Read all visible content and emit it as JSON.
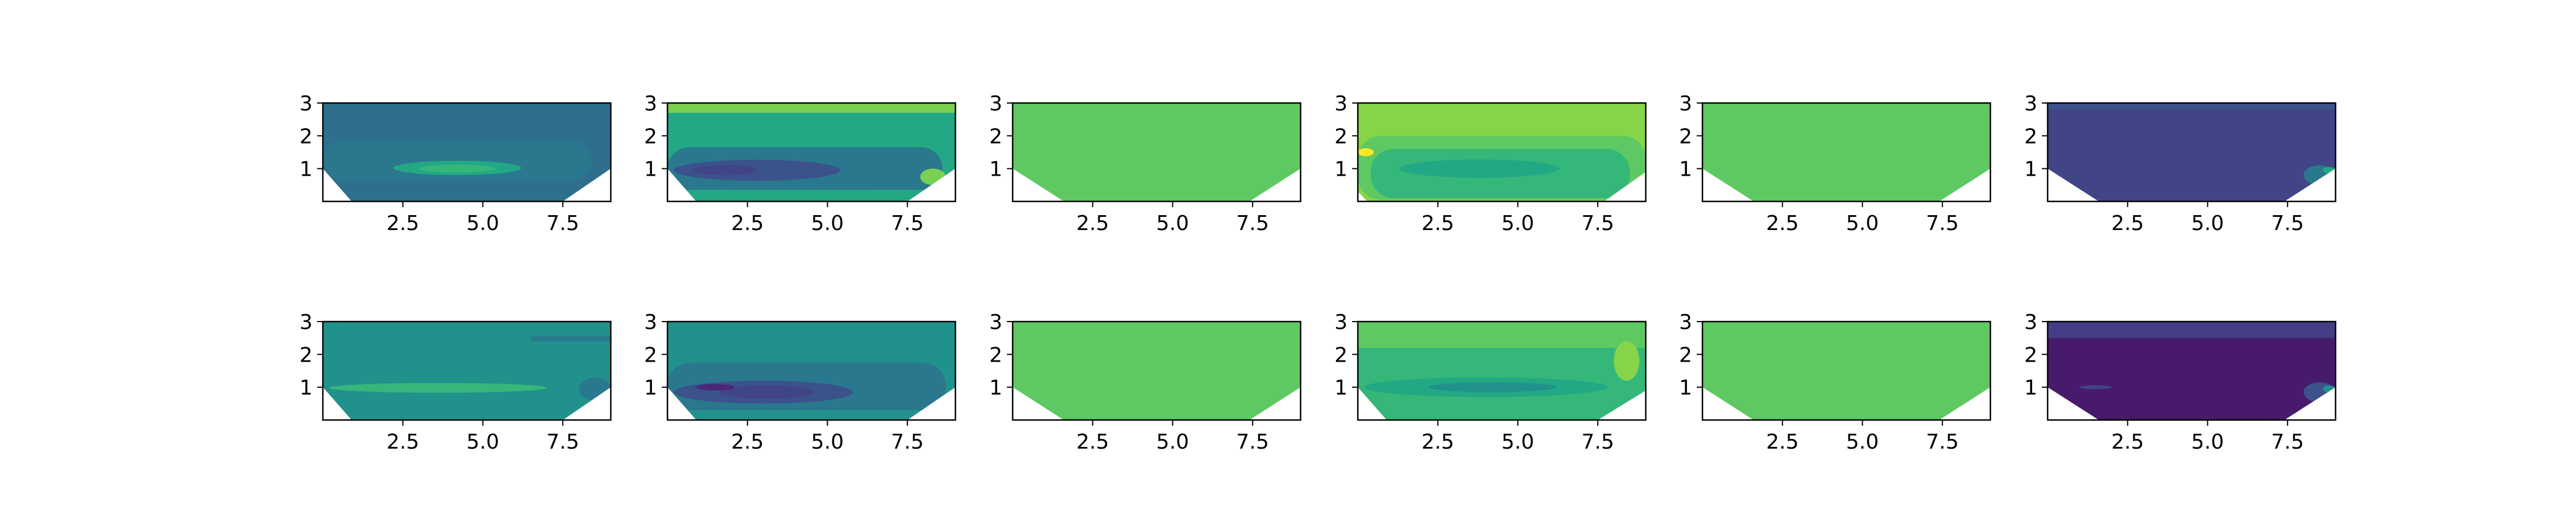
{
  "figure": {
    "layout": {
      "rows": 2,
      "cols": 6
    },
    "background": "#ffffff",
    "palette": "viridis"
  },
  "chart_data": [
    {
      "type": "contour",
      "row": 0,
      "col": 0,
      "xlim": [
        0,
        9
      ],
      "ylim": [
        0,
        3
      ],
      "xticks": [
        {
          "value": 2.5,
          "label": "2.5"
        },
        {
          "value": 5.0,
          "label": "5.0"
        },
        {
          "value": 7.5,
          "label": "7.5"
        }
      ],
      "yticks": [
        {
          "value": 1,
          "label": "1"
        },
        {
          "value": 2,
          "label": "2"
        },
        {
          "value": 3,
          "label": "3"
        }
      ],
      "blank_triangles": {
        "left_top": 1.0,
        "left_bottom_x": 0.9,
        "right_top": 1.0,
        "right_bottom_x": 7.5
      },
      "base_color": "#2e6f8e",
      "regions": [
        {
          "color": "#2a788e",
          "shape": "band",
          "top": 1.85,
          "bottom": 0.65,
          "x0": 0.0,
          "x1": 8.4
        },
        {
          "color": "#22a884",
          "shape": "blob",
          "cx": 4.2,
          "cy": 1.02,
          "rx": 2.0,
          "ry": 0.22
        },
        {
          "color": "#35b779",
          "shape": "blob",
          "cx": 4.2,
          "cy": 1.0,
          "rx": 1.2,
          "ry": 0.12
        }
      ]
    },
    {
      "type": "contour",
      "row": 0,
      "col": 1,
      "xlim": [
        0,
        9
      ],
      "ylim": [
        0,
        3
      ],
      "xticks": [
        {
          "value": 2.5,
          "label": "2.5"
        },
        {
          "value": 5.0,
          "label": "5.0"
        },
        {
          "value": 7.5,
          "label": "7.5"
        }
      ],
      "yticks": [
        {
          "value": 1,
          "label": "1"
        },
        {
          "value": 2,
          "label": "2"
        },
        {
          "value": 3,
          "label": "3"
        }
      ],
      "blank_triangles": {
        "left_top": 1.0,
        "left_bottom_x": 0.9,
        "right_top": 1.0,
        "right_bottom_x": 7.5
      },
      "base_color": "#22a884",
      "regions": [
        {
          "color": "#7ad151",
          "shape": "strip",
          "top": 3.0,
          "bottom": 2.7,
          "x0": 0.0,
          "x1": 9.0
        },
        {
          "color": "#2a788e",
          "shape": "band",
          "top": 1.65,
          "bottom": 0.35,
          "x0": 0.0,
          "x1": 8.6
        },
        {
          "color": "#3b528b",
          "shape": "blob",
          "cx": 2.8,
          "cy": 0.95,
          "rx": 2.6,
          "ry": 0.32
        },
        {
          "color": "#414487",
          "shape": "blob",
          "cx": 1.8,
          "cy": 0.95,
          "rx": 1.0,
          "ry": 0.15
        },
        {
          "color": "#7ad151",
          "shape": "blob",
          "cx": 8.3,
          "cy": 0.75,
          "rx": 0.4,
          "ry": 0.25
        }
      ]
    },
    {
      "type": "contour",
      "row": 0,
      "col": 2,
      "xlim": [
        0,
        9
      ],
      "ylim": [
        0,
        3
      ],
      "xticks": [
        {
          "value": 2.5,
          "label": "2.5"
        },
        {
          "value": 5.0,
          "label": "5.0"
        },
        {
          "value": 7.5,
          "label": "7.5"
        }
      ],
      "yticks": [
        {
          "value": 1,
          "label": "1"
        },
        {
          "value": 2,
          "label": "2"
        },
        {
          "value": 3,
          "label": "3"
        }
      ],
      "blank_triangles": {
        "left_top": 1.0,
        "left_bottom_x": 1.6,
        "right_top": 1.0,
        "right_bottom_x": 7.4
      },
      "base_color": "#5ec962",
      "regions": []
    },
    {
      "type": "contour",
      "row": 0,
      "col": 3,
      "xlim": [
        0,
        9
      ],
      "ylim": [
        0,
        3
      ],
      "xticks": [
        {
          "value": 2.5,
          "label": "2.5"
        },
        {
          "value": 5.0,
          "label": "5.0"
        },
        {
          "value": 7.5,
          "label": "7.5"
        }
      ],
      "yticks": [
        {
          "value": 1,
          "label": "1"
        },
        {
          "value": 2,
          "label": "2"
        },
        {
          "value": 3,
          "label": "3"
        }
      ],
      "blank_triangles": {
        "left_top": 0.3,
        "left_bottom_x": 0.3,
        "right_top": 0.9,
        "right_bottom_x": 7.7
      },
      "base_color": "#86d549",
      "regions": [
        {
          "color": "#5ec962",
          "shape": "band",
          "top": 2.0,
          "bottom": 0.05,
          "x0": 0.0,
          "x1": 9.0
        },
        {
          "color": "#35b779",
          "shape": "band",
          "top": 1.6,
          "bottom": 0.1,
          "x0": 0.4,
          "x1": 8.5
        },
        {
          "color": "#22a884",
          "shape": "blob",
          "cx": 3.8,
          "cy": 1.0,
          "rx": 2.5,
          "ry": 0.28
        },
        {
          "color": "#fde725",
          "shape": "blob",
          "cx": 0.25,
          "cy": 1.5,
          "rx": 0.25,
          "ry": 0.12
        }
      ]
    },
    {
      "type": "contour",
      "row": 0,
      "col": 4,
      "xlim": [
        0,
        9
      ],
      "ylim": [
        0,
        3
      ],
      "xticks": [
        {
          "value": 2.5,
          "label": "2.5"
        },
        {
          "value": 5.0,
          "label": "5.0"
        },
        {
          "value": 7.5,
          "label": "7.5"
        }
      ],
      "yticks": [
        {
          "value": 1,
          "label": "1"
        },
        {
          "value": 2,
          "label": "2"
        },
        {
          "value": 3,
          "label": "3"
        }
      ],
      "blank_triangles": {
        "left_top": 1.0,
        "left_bottom_x": 1.6,
        "right_top": 1.0,
        "right_bottom_x": 7.4
      },
      "base_color": "#5ec962",
      "regions": []
    },
    {
      "type": "contour",
      "row": 0,
      "col": 5,
      "xlim": [
        0,
        9
      ],
      "ylim": [
        0,
        3
      ],
      "xticks": [
        {
          "value": 2.5,
          "label": "2.5"
        },
        {
          "value": 5.0,
          "label": "5.0"
        },
        {
          "value": 7.5,
          "label": "7.5"
        }
      ],
      "yticks": [
        {
          "value": 1,
          "label": "1"
        },
        {
          "value": 2,
          "label": "2"
        },
        {
          "value": 3,
          "label": "3"
        }
      ],
      "blank_triangles": {
        "left_top": 1.0,
        "left_bottom_x": 1.6,
        "right_top": 1.0,
        "right_bottom_x": 7.4
      },
      "base_color": "#414487",
      "regions": [
        {
          "color": "#3b528b",
          "shape": "strip",
          "top": 3.0,
          "bottom": 2.8,
          "x0": 0.0,
          "x1": 9.0
        },
        {
          "color": "#2a788e",
          "shape": "blob",
          "cx": 8.5,
          "cy": 0.8,
          "rx": 0.5,
          "ry": 0.3
        },
        {
          "color": "#22a884",
          "shape": "blob",
          "cx": 8.8,
          "cy": 0.95,
          "rx": 0.2,
          "ry": 0.1
        }
      ]
    },
    {
      "type": "contour",
      "row": 1,
      "col": 0,
      "xlim": [
        0,
        9
      ],
      "ylim": [
        0,
        3
      ],
      "xticks": [
        {
          "value": 2.5,
          "label": "2.5"
        },
        {
          "value": 5.0,
          "label": "5.0"
        },
        {
          "value": 7.5,
          "label": "7.5"
        }
      ],
      "yticks": [
        {
          "value": 1,
          "label": "1"
        },
        {
          "value": 2,
          "label": "2"
        },
        {
          "value": 3,
          "label": "3"
        }
      ],
      "blank_triangles": {
        "left_top": 1.0,
        "left_bottom_x": 0.9,
        "right_top": 1.0,
        "right_bottom_x": 7.5
      },
      "base_color": "#21918c",
      "regions": [
        {
          "color": "#2a788e",
          "shape": "strip",
          "top": 2.55,
          "bottom": 2.4,
          "x0": 6.5,
          "x1": 9.0
        },
        {
          "color": "#35b779",
          "shape": "blob",
          "cx": 3.6,
          "cy": 0.98,
          "rx": 3.4,
          "ry": 0.15
        },
        {
          "color": "#2a788e",
          "shape": "blob",
          "cx": 8.5,
          "cy": 0.95,
          "rx": 0.5,
          "ry": 0.35
        }
      ]
    },
    {
      "type": "contour",
      "row": 1,
      "col": 1,
      "xlim": [
        0,
        9
      ],
      "ylim": [
        0,
        3
      ],
      "xticks": [
        {
          "value": 2.5,
          "label": "2.5"
        },
        {
          "value": 5.0,
          "label": "5.0"
        },
        {
          "value": 7.5,
          "label": "7.5"
        }
      ],
      "yticks": [
        {
          "value": 1,
          "label": "1"
        },
        {
          "value": 2,
          "label": "2"
        },
        {
          "value": 3,
          "label": "3"
        }
      ],
      "blank_triangles": {
        "left_top": 1.0,
        "left_bottom_x": 0.9,
        "right_top": 1.0,
        "right_bottom_x": 7.5
      },
      "base_color": "#21918c",
      "regions": [
        {
          "color": "#2a788e",
          "shape": "band",
          "top": 1.75,
          "bottom": 0.3,
          "x0": 0.0,
          "x1": 8.7
        },
        {
          "color": "#3b528b",
          "shape": "blob",
          "cx": 3.0,
          "cy": 0.85,
          "rx": 2.8,
          "ry": 0.35
        },
        {
          "color": "#414487",
          "shape": "blob",
          "cx": 3.1,
          "cy": 0.85,
          "rx": 1.5,
          "ry": 0.2
        },
        {
          "color": "#482878",
          "shape": "blob",
          "cx": 1.5,
          "cy": 1.0,
          "rx": 0.6,
          "ry": 0.1
        }
      ]
    },
    {
      "type": "contour",
      "row": 1,
      "col": 2,
      "xlim": [
        0,
        9
      ],
      "ylim": [
        0,
        3
      ],
      "xticks": [
        {
          "value": 2.5,
          "label": "2.5"
        },
        {
          "value": 5.0,
          "label": "5.0"
        },
        {
          "value": 7.5,
          "label": "7.5"
        }
      ],
      "yticks": [
        {
          "value": 1,
          "label": "1"
        },
        {
          "value": 2,
          "label": "2"
        },
        {
          "value": 3,
          "label": "3"
        }
      ],
      "blank_triangles": {
        "left_top": 1.0,
        "left_bottom_x": 1.6,
        "right_top": 1.0,
        "right_bottom_x": 7.4
      },
      "base_color": "#5ec962",
      "regions": []
    },
    {
      "type": "contour",
      "row": 1,
      "col": 3,
      "xlim": [
        0,
        9
      ],
      "ylim": [
        0,
        3
      ],
      "xticks": [
        {
          "value": 2.5,
          "label": "2.5"
        },
        {
          "value": 5.0,
          "label": "5.0"
        },
        {
          "value": 7.5,
          "label": "7.5"
        }
      ],
      "yticks": [
        {
          "value": 1,
          "label": "1"
        },
        {
          "value": 2,
          "label": "2"
        },
        {
          "value": 3,
          "label": "3"
        }
      ],
      "blank_triangles": {
        "left_top": 1.0,
        "left_bottom_x": 0.9,
        "right_top": 0.9,
        "right_bottom_x": 7.5
      },
      "base_color": "#35b779",
      "regions": [
        {
          "color": "#5ec962",
          "shape": "strip",
          "top": 3.0,
          "bottom": 2.2,
          "x0": 0.0,
          "x1": 9.0
        },
        {
          "color": "#22a884",
          "shape": "blob",
          "cx": 4.0,
          "cy": 1.0,
          "rx": 3.8,
          "ry": 0.3
        },
        {
          "color": "#21918c",
          "shape": "blob",
          "cx": 4.2,
          "cy": 1.0,
          "rx": 2.0,
          "ry": 0.15
        },
        {
          "color": "#86d549",
          "shape": "blob",
          "cx": 8.4,
          "cy": 1.8,
          "rx": 0.4,
          "ry": 0.6
        }
      ]
    },
    {
      "type": "contour",
      "row": 1,
      "col": 4,
      "xlim": [
        0,
        9
      ],
      "ylim": [
        0,
        3
      ],
      "xticks": [
        {
          "value": 2.5,
          "label": "2.5"
        },
        {
          "value": 5.0,
          "label": "5.0"
        },
        {
          "value": 7.5,
          "label": "7.5"
        }
      ],
      "yticks": [
        {
          "value": 1,
          "label": "1"
        },
        {
          "value": 2,
          "label": "2"
        },
        {
          "value": 3,
          "label": "3"
        }
      ],
      "blank_triangles": {
        "left_top": 1.0,
        "left_bottom_x": 1.6,
        "right_top": 1.0,
        "right_bottom_x": 7.4
      },
      "base_color": "#5ec962",
      "regions": []
    },
    {
      "type": "contour",
      "row": 1,
      "col": 5,
      "xlim": [
        0,
        9
      ],
      "ylim": [
        0,
        3
      ],
      "xticks": [
        {
          "value": 2.5,
          "label": "2.5"
        },
        {
          "value": 5.0,
          "label": "5.0"
        },
        {
          "value": 7.5,
          "label": "7.5"
        }
      ],
      "yticks": [
        {
          "value": 1,
          "label": "1"
        },
        {
          "value": 2,
          "label": "2"
        },
        {
          "value": 3,
          "label": "3"
        }
      ],
      "blank_triangles": {
        "left_top": 1.0,
        "left_bottom_x": 1.6,
        "right_top": 1.0,
        "right_bottom_x": 7.4
      },
      "base_color": "#481a6c",
      "regions": [
        {
          "color": "#433e85",
          "shape": "strip",
          "top": 3.0,
          "bottom": 2.5,
          "x0": 0.0,
          "x1": 9.0
        },
        {
          "color": "#3b528b",
          "shape": "blob",
          "cx": 8.5,
          "cy": 0.85,
          "rx": 0.5,
          "ry": 0.3
        },
        {
          "color": "#21918c",
          "shape": "blob",
          "cx": 8.8,
          "cy": 0.95,
          "rx": 0.2,
          "ry": 0.1
        },
        {
          "color": "#414487",
          "shape": "blob",
          "cx": 1.5,
          "cy": 1.0,
          "rx": 0.5,
          "ry": 0.06
        }
      ]
    }
  ]
}
